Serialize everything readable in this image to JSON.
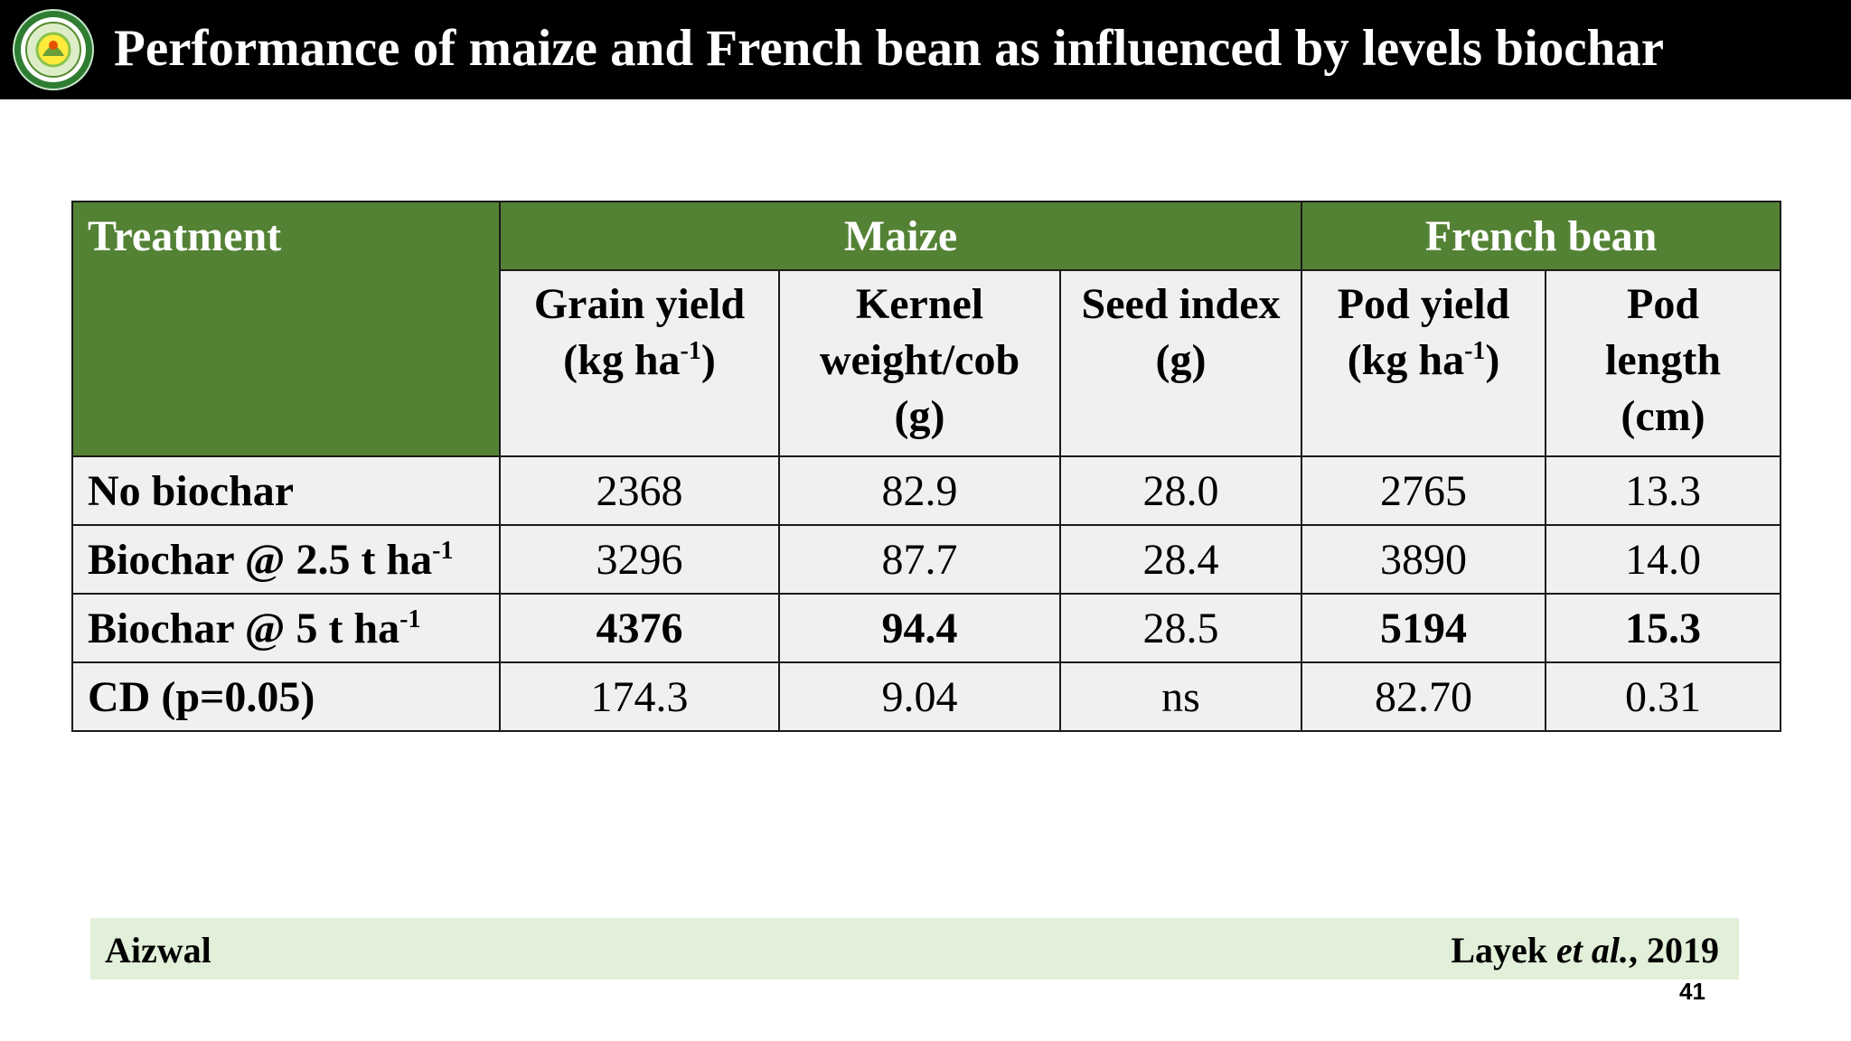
{
  "slide": {
    "title": "Performance of maize and French bean as influenced by levels biochar",
    "page_number": "41"
  },
  "table": {
    "treatment_header": "Treatment",
    "group_maize": "Maize",
    "group_french_bean": "French bean",
    "columns": {
      "grain_yield_l1": "Grain yield",
      "grain_yield_l2a": "(kg ha",
      "grain_yield_sup": "-1",
      "grain_yield_l2b": ")",
      "kernel_l1": "Kernel",
      "kernel_l2": "weight/cob",
      "kernel_l3": "(g)",
      "seed_l1": "Seed index",
      "seed_l2": "(g)",
      "pod_yield_l1": "Pod yield",
      "pod_yield_l2a": "(kg ha",
      "pod_yield_sup": "-1",
      "pod_yield_l2b": ")",
      "pod_len_l1": "Pod",
      "pod_len_l2": "length",
      "pod_len_l3": "(cm)"
    },
    "rows": [
      {
        "label": "No biochar",
        "sup": "",
        "values": [
          "2368",
          "82.9",
          "28.0",
          "2765",
          "13.3"
        ]
      },
      {
        "label": "Biochar @ 2.5 t ha",
        "sup": "-1",
        "values": [
          "3296",
          "87.7",
          "28.4",
          "3890",
          "14.0"
        ]
      },
      {
        "label": "Biochar @ 5 t ha",
        "sup": "-1",
        "values": [
          "4376",
          "94.4",
          "28.5",
          "5194",
          "15.3"
        ]
      },
      {
        "label": "CD (p=0.05)",
        "sup": "",
        "values": [
          "174.3",
          "9.04",
          "ns",
          "82.70",
          "0.31"
        ]
      }
    ]
  },
  "footer": {
    "location": "Aizwal",
    "citation_author": "Layek ",
    "citation_etal": "et al.",
    "citation_year": ", 2019"
  },
  "colors": {
    "header_green": "#548235",
    "cell_gray": "#f0f0f0",
    "footer_green": "#e2efd9",
    "title_bar": "#000000"
  },
  "icons": {
    "logo": "university-seal-logo"
  }
}
